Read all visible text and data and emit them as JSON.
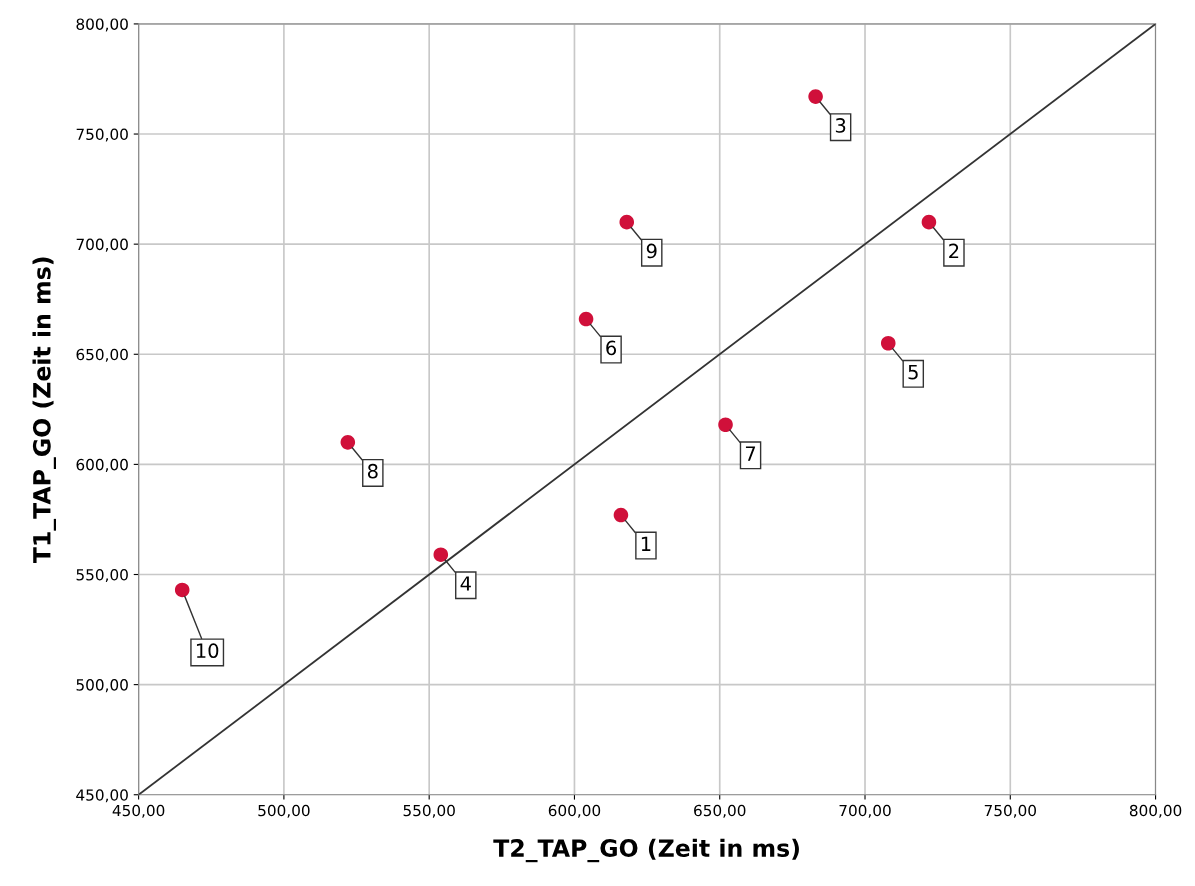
{
  "chart_data": {
    "type": "scatter",
    "xlabel": "T2_TAP_GO (Zeit in ms)",
    "ylabel": "T1_TAP_GO (Zeit in ms)",
    "series": [
      {
        "color": "#d0103a",
        "marker": "circle",
        "x": [
          616,
          722,
          683,
          554,
          708,
          604,
          652,
          522,
          618,
          465
        ],
        "values": [
          577,
          710,
          767,
          559,
          655,
          666,
          618,
          610,
          710,
          543
        ]
      },
      {
        "type": "line",
        "color": "#333333",
        "marker": "none",
        "x": [
          450,
          800
        ],
        "values": [
          450,
          800
        ]
      }
    ],
    "annotations": [
      {
        "text": "1",
        "x": 616,
        "y": 577
      },
      {
        "text": "2",
        "x": 722,
        "y": 710
      },
      {
        "text": "3",
        "x": 683,
        "y": 767
      },
      {
        "text": "4",
        "x": 554,
        "y": 559
      },
      {
        "text": "5",
        "x": 708,
        "y": 655
      },
      {
        "text": "6",
        "x": 604,
        "y": 666
      },
      {
        "text": "7",
        "x": 652,
        "y": 618
      },
      {
        "text": "8",
        "x": 522,
        "y": 610
      },
      {
        "text": "9",
        "x": 618,
        "y": 710
      },
      {
        "text": "10",
        "x": 465,
        "y": 543
      }
    ],
    "xlim": [
      450,
      800
    ],
    "ylim": [
      450,
      800
    ],
    "xticks": [
      {
        "value": 450,
        "label": "450,00"
      },
      {
        "value": 500,
        "label": "500,00"
      },
      {
        "value": 550,
        "label": "550,00"
      },
      {
        "value": 600,
        "label": "600,00"
      },
      {
        "value": 650,
        "label": "650,00"
      },
      {
        "value": 700,
        "label": "700,00"
      },
      {
        "value": 750,
        "label": "750,00"
      },
      {
        "value": 800,
        "label": "800,00"
      }
    ],
    "yticks": [
      {
        "value": 450,
        "label": "450,00"
      },
      {
        "value": 500,
        "label": "500,00"
      },
      {
        "value": 550,
        "label": "550,00"
      },
      {
        "value": 600,
        "label": "600,00"
      },
      {
        "value": 650,
        "label": "650,00"
      },
      {
        "value": 700,
        "label": "700,00"
      },
      {
        "value": 750,
        "label": "750,00"
      },
      {
        "value": 800,
        "label": "800,00"
      }
    ],
    "grid": true
  }
}
